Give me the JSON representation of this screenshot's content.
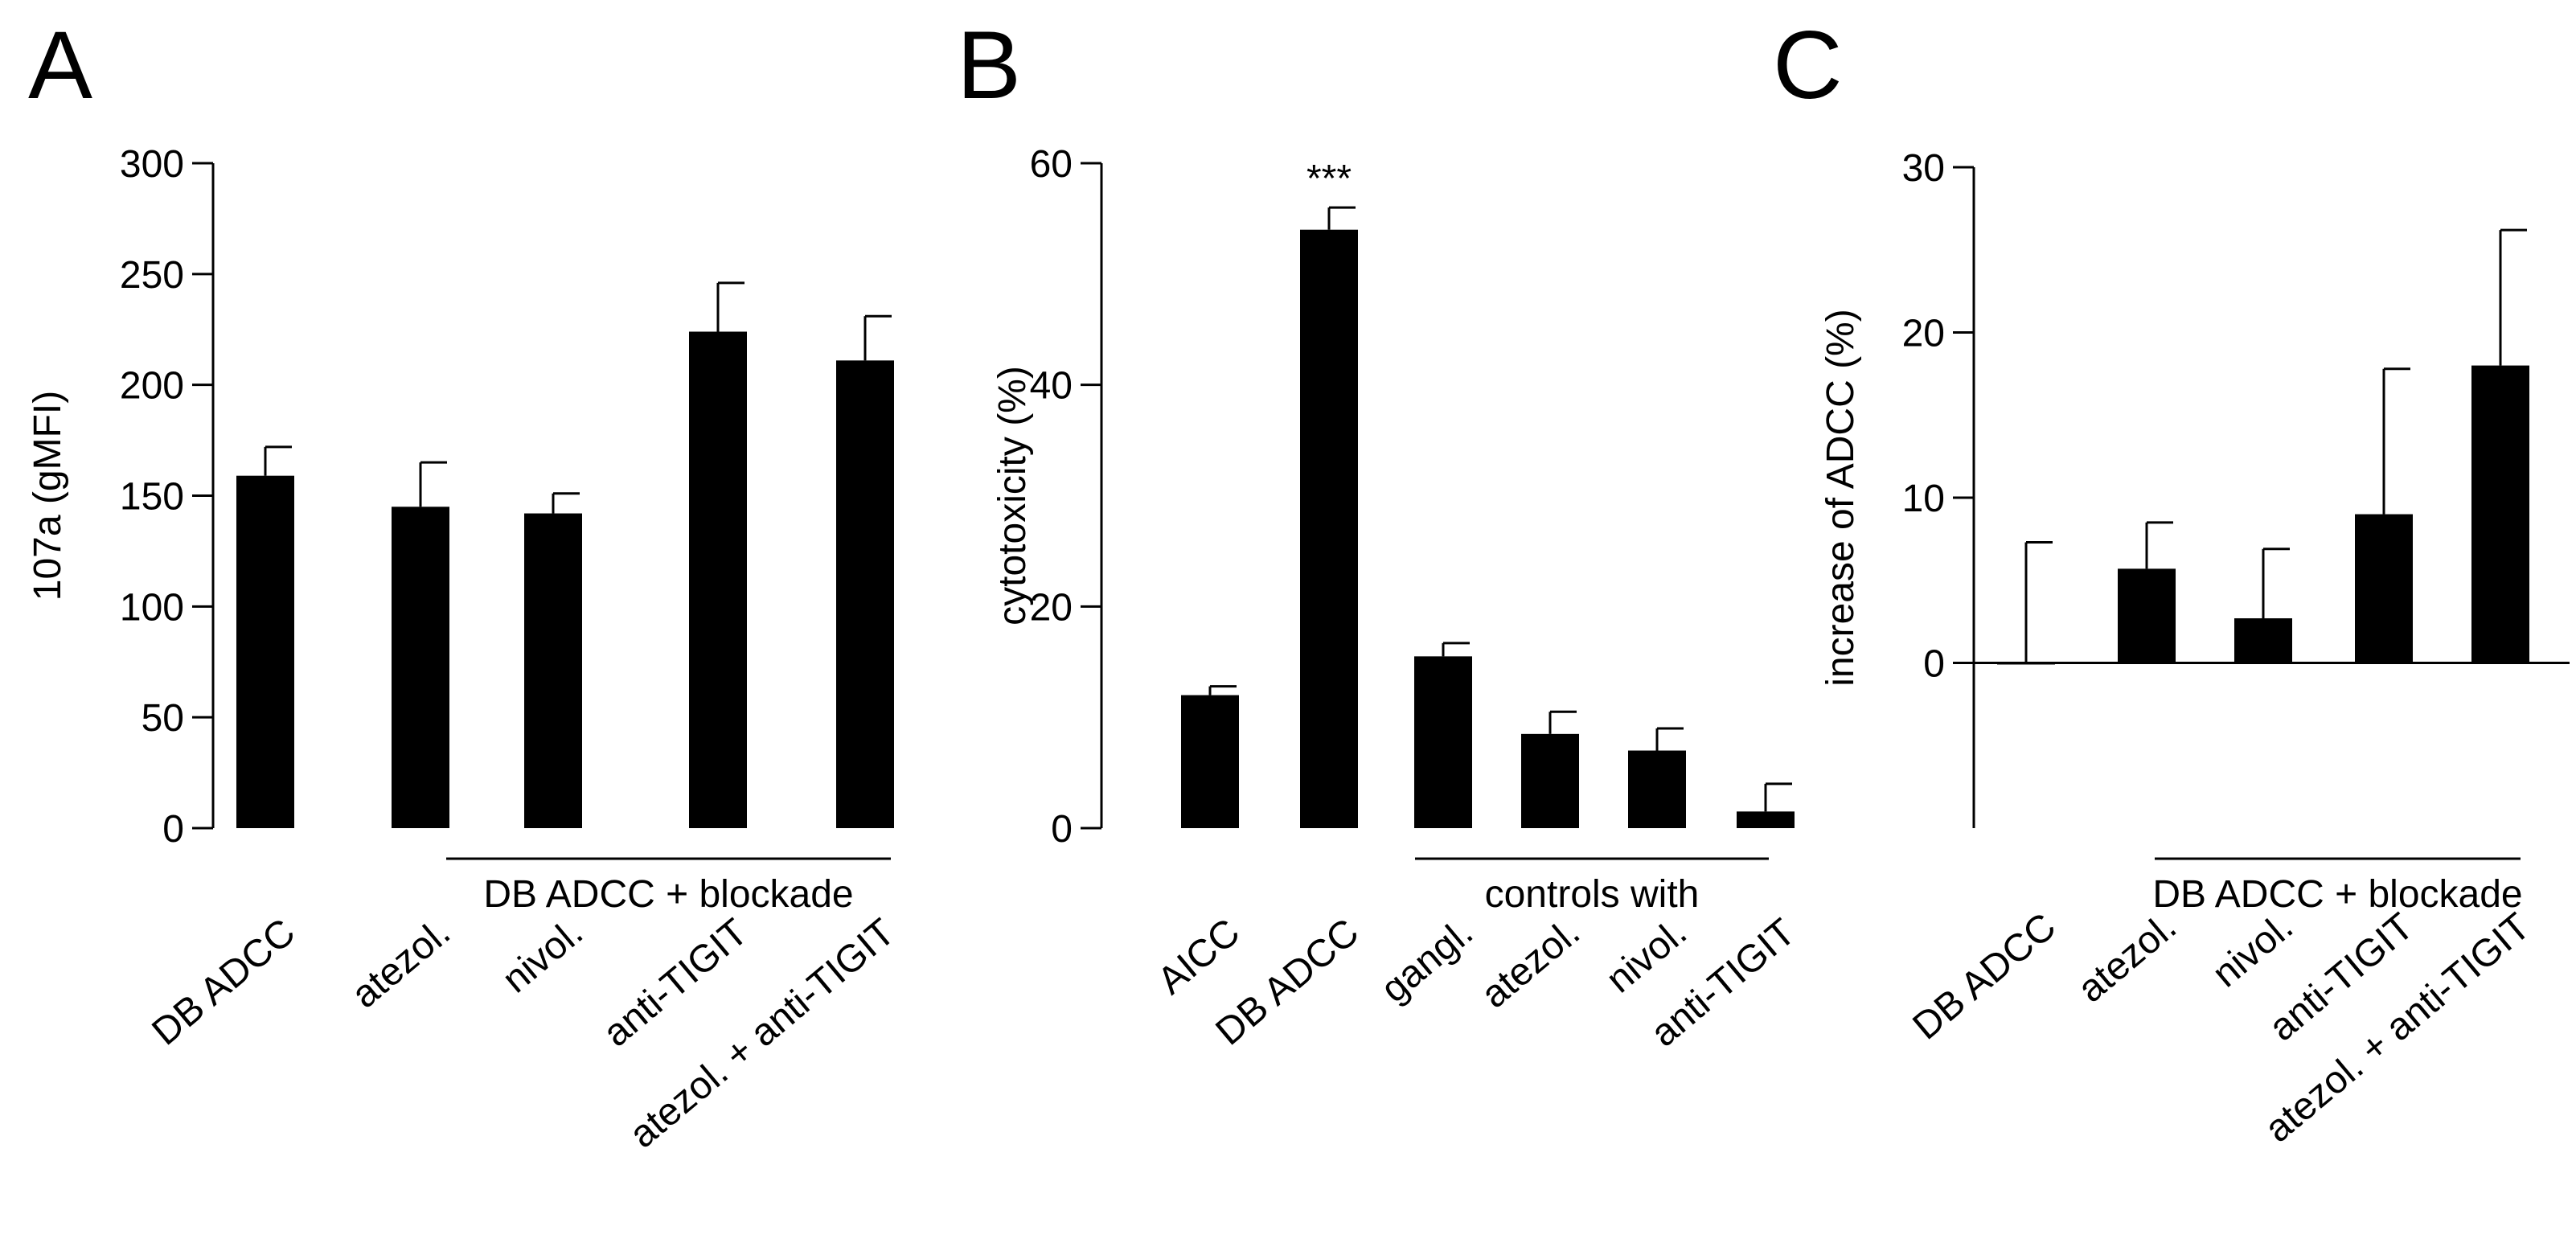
{
  "chart_data": [
    {
      "panel": "A",
      "type": "bar",
      "ylabel": "107a (gMFI)",
      "ylim": [
        0,
        300
      ],
      "yticks": [
        0,
        50,
        100,
        150,
        200,
        250,
        300
      ],
      "categories": [
        "DB ADCC",
        "atezol.",
        "nivol.",
        "anti-TIGIT",
        "atezol. + anti-TIGIT"
      ],
      "values": [
        159,
        145,
        142,
        224,
        211
      ],
      "errors": [
        13,
        20,
        9,
        22,
        20
      ],
      "group": {
        "label": "DB ADCC + blockade",
        "from": 1,
        "to": 4
      },
      "annotations": [],
      "zero_line": false
    },
    {
      "panel": "B",
      "type": "bar",
      "ylabel": "cytotoxicity (%)",
      "ylim": [
        0,
        60
      ],
      "yticks": [
        0,
        20,
        40,
        60
      ],
      "categories": [
        "AICC",
        "DB ADCC",
        "gangl.",
        "atezol.",
        "nivol.",
        "anti-TIGIT"
      ],
      "values": [
        12,
        54,
        15.5,
        8.5,
        7,
        1.5
      ],
      "errors": [
        0.8,
        2,
        1.2,
        2,
        2,
        2.5
      ],
      "group": {
        "label": "controls with",
        "from": 2,
        "to": 5
      },
      "annotations": [
        {
          "index": 1,
          "text": "***"
        }
      ],
      "zero_line": false
    },
    {
      "panel": "C",
      "type": "bar",
      "ylabel": "increase of ADCC (%)",
      "ylim": [
        -10,
        30
      ],
      "yticks": [
        0,
        10,
        20,
        30
      ],
      "categories": [
        "DB ADCC",
        "atezol.",
        "nivol.",
        "anti-TIGIT",
        "atezol. + anti-TIGIT"
      ],
      "values": [
        0,
        5.7,
        2.7,
        9,
        18
      ],
      "errors": [
        7.3,
        2.8,
        4.2,
        8.8,
        8.2
      ],
      "group": {
        "label": "DB ADCC + blockade",
        "from": 1,
        "to": 4
      },
      "annotations": [],
      "zero_line": true
    }
  ]
}
